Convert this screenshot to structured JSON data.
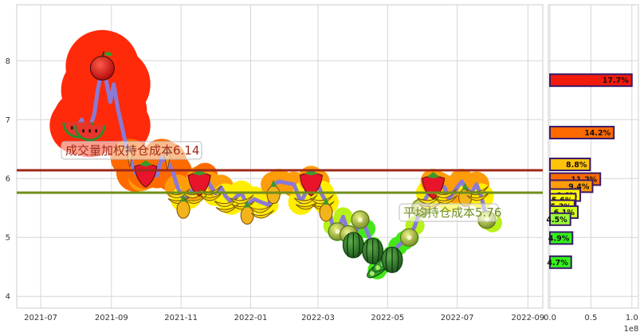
{
  "chart_data": [
    {
      "type": "line",
      "title": "",
      "xlabel": "",
      "ylabel": "",
      "x_tick_labels": [
        "2021-07",
        "2021-09",
        "2021-11",
        "2022-01",
        "2022-03",
        "2022-05",
        "2022-07",
        "2022-09"
      ],
      "y_tick_labels": [
        "4",
        "5",
        "6",
        "7",
        "8"
      ],
      "ylim": [
        3.8,
        8.95
      ],
      "grid": true,
      "series": [
        {
          "x": [
            "2021-08-03",
            "2021-08-06",
            "2021-08-10",
            "2021-08-13",
            "2021-08-17",
            "2021-08-20",
            "2021-08-24",
            "2021-08-27",
            "2021-08-31",
            "2021-09-03",
            "2021-09-07",
            "2021-09-10",
            "2021-09-14",
            "2021-09-17",
            "2021-09-22",
            "2021-09-27",
            "2021-10-01",
            "2021-10-11",
            "2021-10-15",
            "2021-10-20",
            "2021-10-25",
            "2021-10-29",
            "2021-11-03",
            "2021-11-08",
            "2021-11-12",
            "2021-11-17",
            "2021-11-22",
            "2021-11-26",
            "2021-12-01",
            "2021-12-06",
            "2021-12-10",
            "2021-12-15",
            "2021-12-20",
            "2021-12-24",
            "2021-12-29",
            "2022-01-04",
            "2022-01-10",
            "2022-01-17",
            "2022-01-21",
            "2022-01-26",
            "2022-02-08",
            "2022-02-14",
            "2022-02-18",
            "2022-02-23",
            "2022-02-28",
            "2022-03-04",
            "2022-03-08",
            "2022-03-14",
            "2022-03-18",
            "2022-03-23",
            "2022-03-28",
            "2022-04-01",
            "2022-04-07",
            "2022-04-12",
            "2022-04-18",
            "2022-04-22",
            "2022-04-27",
            "2022-05-05",
            "2022-05-10",
            "2022-05-16",
            "2022-05-20",
            "2022-05-25",
            "2022-05-30",
            "2022-06-06",
            "2022-06-10",
            "2022-06-15",
            "2022-06-20",
            "2022-06-24",
            "2022-06-29",
            "2022-07-05",
            "2022-07-08",
            "2022-07-13",
            "2022-07-18",
            "2022-07-22",
            "2022-07-27",
            "2022-08-01"
          ],
          "y": [
            6.9,
            7.0,
            6.7,
            6.85,
            7.1,
            7.5,
            7.9,
            7.7,
            7.3,
            7.6,
            7.15,
            6.9,
            6.55,
            6.35,
            6.1,
            6.0,
            6.15,
            6.05,
            6.35,
            6.3,
            6.1,
            5.85,
            5.65,
            5.7,
            5.85,
            6.0,
            6.05,
            5.9,
            5.75,
            5.85,
            5.7,
            5.6,
            5.7,
            5.75,
            5.55,
            5.65,
            5.6,
            5.55,
            5.9,
            5.95,
            5.9,
            5.6,
            5.75,
            6.0,
            5.95,
            5.75,
            5.6,
            5.2,
            5.1,
            5.35,
            5.05,
            4.95,
            5.3,
            5.15,
            4.85,
            4.45,
            4.55,
            4.7,
            4.85,
            4.95,
            5.0,
            5.2,
            5.5,
            5.75,
            5.95,
            5.9,
            5.85,
            5.65,
            5.8,
            5.95,
            5.85,
            5.75,
            5.9,
            5.7,
            5.3,
            5.25
          ]
        }
      ],
      "hlines": [
        {
          "label": "成交量加权持仓成本6.14",
          "value": 6.14,
          "color": "#9e2a1a"
        },
        {
          "label": "平均持仓成本5.76",
          "value": 5.76,
          "color": "#6f8f1a"
        }
      ]
    },
    {
      "type": "bar",
      "orientation": "horizontal",
      "x_tick_labels": [
        "0.0",
        "0.5",
        "1.0"
      ],
      "x_offset_label": "1e8",
      "bars": [
        {
          "price": 7.67,
          "value": 1.0,
          "label": "17.7%",
          "color": "#f21a0a"
        },
        {
          "price": 6.78,
          "value": 0.78,
          "label": "14.2%",
          "color": "#ff6a00"
        },
        {
          "price": 6.24,
          "value": 0.49,
          "label": "8.8%",
          "color": "#ffc20a"
        },
        {
          "price": 5.99,
          "value": 0.615,
          "label": "11.2%",
          "color": "#ff6a00"
        },
        {
          "price": 5.87,
          "value": 0.52,
          "label": "9.4%",
          "color": "#ff9c0a"
        },
        {
          "price": 5.72,
          "value": 0.37,
          "label": "6.6%",
          "color": "#ffff00"
        },
        {
          "price": 5.64,
          "value": 0.315,
          "label": "5.6%",
          "color": "#ffff00"
        },
        {
          "price": 5.53,
          "value": 0.3,
          "label": "5.3%",
          "color": "#ffff00"
        },
        {
          "price": 5.43,
          "value": 0.34,
          "label": "6.1%",
          "color": "#d2ff1e"
        },
        {
          "price": 5.31,
          "value": 0.25,
          "label": "4.5%",
          "color": "#99ff33"
        },
        {
          "price": 4.99,
          "value": 0.275,
          "label": "4.9%",
          "color": "#33f21a"
        },
        {
          "price": 4.58,
          "value": 0.26,
          "label": "4.7%",
          "color": "#33f21a"
        }
      ]
    }
  ]
}
